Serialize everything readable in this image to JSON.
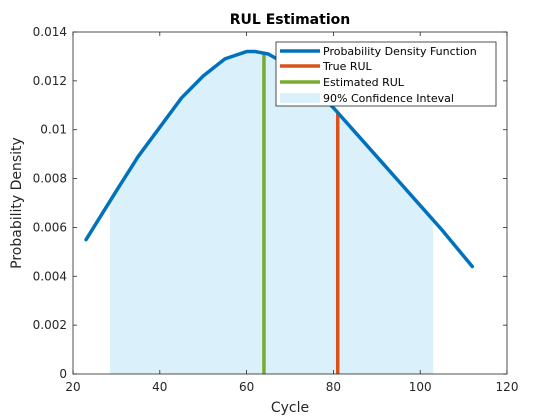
{
  "chart_data": {
    "type": "line",
    "title": "RUL Estimation",
    "xlabel": "Cycle",
    "ylabel": "Probability Density",
    "xlim": [
      20,
      120
    ],
    "ylim": [
      0,
      0.014
    ],
    "x_ticks": [
      20,
      40,
      60,
      80,
      100,
      120
    ],
    "y_ticks": [
      0,
      0.002,
      0.004,
      0.006,
      0.008,
      0.01,
      0.012,
      0.014
    ],
    "x_tick_labels": [
      "20",
      "40",
      "60",
      "80",
      "100",
      "120"
    ],
    "y_tick_labels": [
      "0",
      "0.002",
      "0.004",
      "0.006",
      "0.008",
      "0.01",
      "0.012",
      "0.014"
    ],
    "grid": false,
    "legend_position": "top-right",
    "series": [
      {
        "name": "Probability Density Function",
        "kind": "line",
        "color": "#0072BD",
        "x": [
          23,
          30,
          35,
          40,
          45,
          50,
          55,
          60,
          62,
          65,
          70,
          75,
          80,
          85,
          90,
          95,
          100,
          105,
          112
        ],
        "y": [
          0.0055,
          0.0075,
          0.0089,
          0.0101,
          0.0113,
          0.0122,
          0.0129,
          0.0132,
          0.0132,
          0.0131,
          0.0126,
          0.0118,
          0.0109,
          0.0099,
          0.0089,
          0.0079,
          0.0069,
          0.0059,
          0.0044
        ]
      },
      {
        "name": "True RUL",
        "kind": "vertical-line",
        "color": "#D95319",
        "x": 81
      },
      {
        "name": "Estimated RUL",
        "kind": "vertical-line",
        "color": "#77AC30",
        "x": 64
      },
      {
        "name": "90% Confidence Inteval",
        "kind": "area",
        "color": "#DAF0FA",
        "x_start": 28.5,
        "x_end": 103
      }
    ]
  }
}
